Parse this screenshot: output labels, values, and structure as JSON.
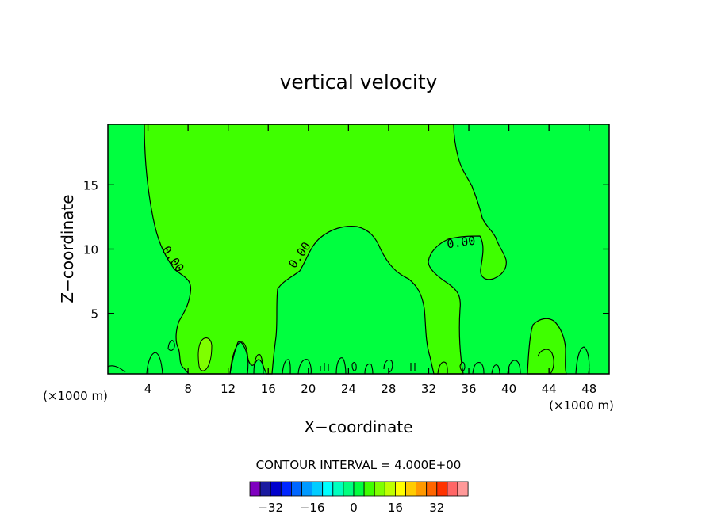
{
  "chart_data": {
    "type": "contour",
    "title": "vertical velocity",
    "xlabel": "X−coordinate",
    "ylabel": "Z−coordinate",
    "x_unit_left": "(×1000 m)",
    "x_unit_right": "(×1000 m)",
    "xlim": [
      0,
      50
    ],
    "ylim": [
      0.3,
      19.7
    ],
    "x_ticks": [
      4,
      8,
      12,
      16,
      20,
      24,
      28,
      32,
      36,
      40,
      44,
      48
    ],
    "y_ticks": [
      5,
      10,
      15
    ],
    "contour_interval_text": "CONTOUR INTERVAL = 4.000E+00",
    "contour_labels": [
      {
        "text": "0.00",
        "x": 6.2,
        "z": 9.1
      },
      {
        "text": "0.00",
        "x": 19.6,
        "z": 9.5
      },
      {
        "text": "0.00",
        "x": 35.5,
        "z": 10.5
      }
    ],
    "background_color": "#00ff3f",
    "positive_region_color": "#3fff00",
    "colorbar": {
      "colors": [
        "#7f00bf",
        "#1a1a9f",
        "#0000cc",
        "#0026ff",
        "#0066ff",
        "#0099ff",
        "#00ccff",
        "#00ffff",
        "#00ffbf",
        "#00ff7f",
        "#00ff3f",
        "#3fff00",
        "#7fff00",
        "#bfff00",
        "#ffff00",
        "#ffcc00",
        "#ff9900",
        "#ff6600",
        "#ff3300",
        "#ff6666",
        "#ff9999"
      ],
      "tick_labels": [
        "−32",
        "−16",
        "0",
        "16",
        "32"
      ],
      "tick_values": [
        -32,
        -16,
        0,
        16,
        32
      ]
    }
  }
}
